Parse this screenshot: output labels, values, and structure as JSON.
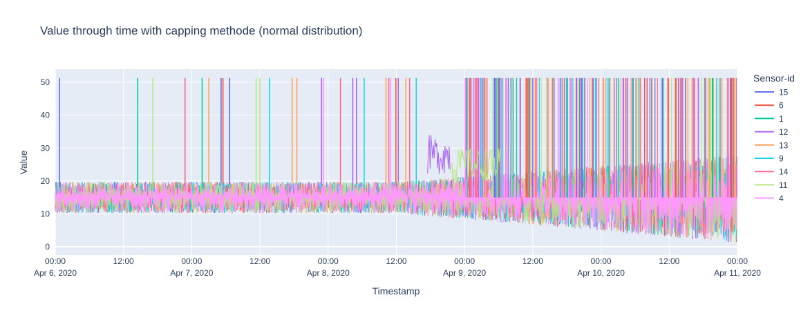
{
  "chart_data": {
    "type": "line",
    "title": "Value through time with capping methode (normal distribution)",
    "xlabel": "Timestamp",
    "ylabel": "Value",
    "legend_title": "Sensor-id",
    "legend_position": "right",
    "grid": true,
    "x_range": [
      "2020-04-06 00:00",
      "2020-04-11 00:00"
    ],
    "ylim": [
      -2.5,
      54
    ],
    "x_ticks": [
      {
        "x": "2020-04-06 00:00",
        "time": "00:00",
        "date": "Apr 6, 2020"
      },
      {
        "x": "2020-04-06 12:00",
        "time": "12:00",
        "date": ""
      },
      {
        "x": "2020-04-07 00:00",
        "time": "00:00",
        "date": "Apr 7, 2020"
      },
      {
        "x": "2020-04-07 12:00",
        "time": "12:00",
        "date": ""
      },
      {
        "x": "2020-04-08 00:00",
        "time": "00:00",
        "date": "Apr 8, 2020"
      },
      {
        "x": "2020-04-08 12:00",
        "time": "12:00",
        "date": ""
      },
      {
        "x": "2020-04-09 00:00",
        "time": "00:00",
        "date": "Apr 9, 2020"
      },
      {
        "x": "2020-04-09 12:00",
        "time": "12:00",
        "date": ""
      },
      {
        "x": "2020-04-10 00:00",
        "time": "00:00",
        "date": "Apr 10, 2020"
      },
      {
        "x": "2020-04-10 12:00",
        "time": "12:00",
        "date": ""
      },
      {
        "x": "2020-04-11 00:00",
        "time": "00:00",
        "date": "Apr 11, 2020"
      }
    ],
    "y_ticks": [
      "0",
      "10",
      "20",
      "30",
      "40",
      "50"
    ],
    "series": [
      {
        "name": "15",
        "color": "#636efa",
        "spikes": [
          "2020-04-06 00:45",
          "2020-04-07 05:10",
          "2020-04-07 06:40"
        ]
      },
      {
        "name": "6",
        "color": "#EF553B",
        "spikes": [
          "2020-04-07 05:30",
          "2020-04-08 11:55"
        ]
      },
      {
        "name": "1",
        "color": "#00cc96",
        "spikes": [
          "2020-04-06 14:30",
          "2020-04-07 01:50"
        ]
      },
      {
        "name": "12",
        "color": "#ab63fa",
        "spikes": [
          "2020-04-07 22:50",
          "2020-04-08 04:20",
          "2020-04-08 05:00",
          "2020-04-08 12:20",
          "2020-04-09 00:20",
          "2020-04-09 03:20"
        ]
      },
      {
        "name": "13",
        "color": "#FFA15A",
        "spikes": [
          "2020-04-07 03:00",
          "2020-04-07 17:40",
          "2020-04-07 18:30",
          "2020-04-08 10:10",
          "2020-04-08 13:40"
        ]
      },
      {
        "name": "9",
        "color": "#19d3f3",
        "spikes": [
          "2020-04-07 13:40",
          "2020-04-08 06:20",
          "2020-04-08 15:30"
        ]
      },
      {
        "name": "14",
        "color": "#FF6692",
        "spikes": [
          "2020-04-06 22:50",
          "2020-04-08 02:10",
          "2020-04-08 10:40",
          "2020-04-08 14:20"
        ]
      },
      {
        "name": "11",
        "color": "#B6E880",
        "spikes": [
          "2020-04-06 17:10",
          "2020-04-07 11:20",
          "2020-04-07 12:00"
        ]
      },
      {
        "name": "4",
        "color": "#FF97FF",
        "spikes": [
          "2020-04-07 23:10",
          "2020-04-08 11:00"
        ]
      }
    ],
    "baseline": {
      "center": 15,
      "band_low": 10.2,
      "band_high": 19.8
    },
    "note_segments": [
      {
        "series": "12",
        "from": "2020-04-08 17:30",
        "to": "2020-04-08 21:30",
        "low": 22,
        "high": 34
      },
      {
        "series": "11",
        "from": "2020-04-08 21:30",
        "to": "2020-04-09 06:30",
        "low": 20,
        "high": 30
      }
    ]
  }
}
